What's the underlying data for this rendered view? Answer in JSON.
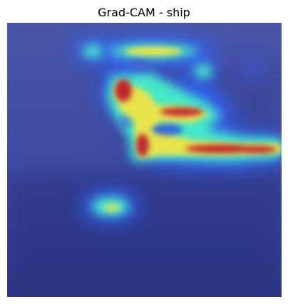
{
  "title": "Grad-CAM - ship",
  "colors": {
    "background_blue": "#3a4598",
    "hot": "#c1272d",
    "warm": "#f0e443",
    "cool": "#45e8c8",
    "cold": "#2b66ff"
  }
}
